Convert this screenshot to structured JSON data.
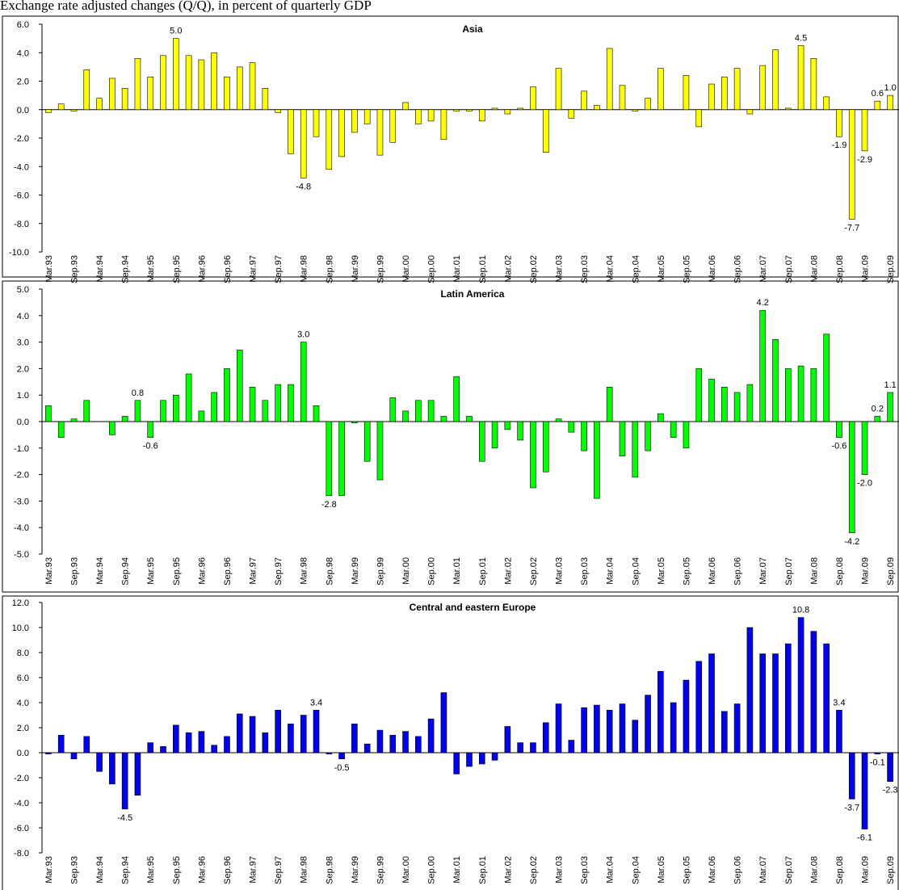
{
  "title": "Exchange rate adjusted changes (Q/Q), in percent of quarterly GDP",
  "chart_data": [
    {
      "type": "bar",
      "title": "Asia",
      "color": "#ffff00",
      "categories": [
        "Mar.93",
        null,
        "Sep.93",
        null,
        "Mar.94",
        null,
        "Sep.94",
        null,
        "Mar.95",
        null,
        "Sep.95",
        null,
        "Mar.96",
        null,
        "Sep.96",
        null,
        "Mar.97",
        null,
        "Sep.97",
        null,
        "Mar.98",
        null,
        "Sep.98",
        null,
        "Mar.99",
        null,
        "Sep.99",
        null,
        "Mar.00",
        null,
        "Sep.00",
        null,
        "Mar.01",
        null,
        "Sep.01",
        null,
        "Mar.02",
        null,
        "Sep.02",
        null,
        "Mar.03",
        null,
        "Sep.03",
        null,
        "Mar.04",
        null,
        "Sep.04",
        null,
        "Mar.05",
        null,
        "Sep.05",
        null,
        "Mar.06",
        null,
        "Sep.06",
        null,
        "Mar.07",
        null,
        "Sep.07",
        null,
        "Mar.08",
        null,
        "Sep.08",
        null,
        "Mar.09",
        null,
        "Sep.09"
      ],
      "values": [
        -0.2,
        0.4,
        -0.1,
        2.8,
        0.8,
        2.2,
        1.5,
        3.6,
        2.3,
        3.8,
        5.0,
        3.8,
        3.5,
        4.0,
        2.3,
        3.0,
        3.3,
        1.5,
        -0.2,
        -3.1,
        -4.8,
        -1.9,
        -4.2,
        -3.3,
        -1.6,
        -1.0,
        -3.2,
        -2.3,
        0.5,
        -1.0,
        -0.8,
        -2.1,
        -0.1,
        -0.1,
        -0.8,
        0.1,
        -0.3,
        0.1,
        1.6,
        -3.0,
        2.9,
        -0.6,
        1.3,
        0.3,
        4.3,
        1.7,
        -0.1,
        0.8,
        2.9,
        0.0,
        2.4,
        -1.2,
        1.8,
        2.3,
        2.9,
        -0.3,
        3.1,
        4.2,
        0.1,
        4.5,
        3.6,
        0.9,
        -1.9,
        -7.7,
        -2.9,
        0.6,
        1.0
      ],
      "value_labels": [
        null,
        null,
        null,
        null,
        null,
        null,
        null,
        null,
        null,
        null,
        "5.0",
        null,
        null,
        null,
        null,
        null,
        null,
        null,
        null,
        null,
        "-4.8",
        null,
        null,
        null,
        null,
        null,
        null,
        null,
        null,
        null,
        null,
        null,
        null,
        null,
        null,
        null,
        null,
        null,
        null,
        null,
        null,
        null,
        null,
        null,
        null,
        null,
        null,
        null,
        null,
        null,
        null,
        null,
        null,
        null,
        null,
        null,
        null,
        null,
        null,
        "4.5",
        null,
        null,
        "-1.9",
        "-7.7",
        "-2.9",
        "0.6",
        "1.0"
      ],
      "ylim": [
        -10,
        6
      ],
      "yticks": [
        {
          "value": -10,
          "label": "-10.0"
        },
        {
          "value": -8,
          "label": "-8.0"
        },
        {
          "value": -6,
          "label": "-6.0"
        },
        {
          "value": -4,
          "label": "-4.0"
        },
        {
          "value": -2,
          "label": "-2.0"
        },
        {
          "value": 0,
          "label": "0.0"
        },
        {
          "value": 2,
          "label": "2.0"
        },
        {
          "value": 4,
          "label": "4.0"
        },
        {
          "value": 6,
          "label": "6.0"
        }
      ]
    },
    {
      "type": "bar",
      "title": "Latin America",
      "color": "#00ff00",
      "categories": [
        "Mar.93",
        null,
        "Sep.93",
        null,
        "Mar.94",
        null,
        "Sep.94",
        null,
        "Mar.95",
        null,
        "Sep.95",
        null,
        "Mar.96",
        null,
        "Sep.96",
        null,
        "Mar.97",
        null,
        "Sep.97",
        null,
        "Mar.98",
        null,
        "Sep.98",
        null,
        "Mar.99",
        null,
        "Sep.99",
        null,
        "Mar.00",
        null,
        "Sep.00",
        null,
        "Mar.01",
        null,
        "Sep.01",
        null,
        "Mar.02",
        null,
        "Sep.02",
        null,
        "Mar.03",
        null,
        "Sep.03",
        null,
        "Mar.04",
        null,
        "Sep.04",
        null,
        "Mar.05",
        null,
        "Sep.05",
        null,
        "Mar.06",
        null,
        "Sep.06",
        null,
        "Mar.07",
        null,
        "Sep.07",
        null,
        "Mar.08",
        null,
        "Sep.08",
        null,
        "Mar.09",
        null,
        "Sep.09"
      ],
      "values": [
        0.6,
        -0.6,
        0.1,
        0.8,
        0.0,
        -0.5,
        0.2,
        0.8,
        -0.6,
        0.8,
        1.0,
        1.8,
        0.4,
        1.1,
        2.0,
        2.7,
        1.3,
        0.8,
        1.4,
        1.4,
        3.0,
        0.6,
        -2.8,
        -2.8,
        -0.05,
        -1.5,
        -2.2,
        0.9,
        0.4,
        0.8,
        0.8,
        0.2,
        1.7,
        0.2,
        -1.5,
        -1.0,
        -0.3,
        -0.7,
        -2.5,
        -1.9,
        0.1,
        -0.4,
        -1.1,
        -2.9,
        1.3,
        -1.3,
        -2.1,
        -1.1,
        0.3,
        -0.6,
        -1.0,
        2.0,
        1.6,
        1.3,
        1.1,
        1.4,
        4.2,
        3.1,
        2.0,
        2.1,
        2.0,
        3.3,
        -0.6,
        -4.2,
        -2.0,
        0.2,
        1.1
      ],
      "value_labels": [
        null,
        null,
        null,
        null,
        null,
        null,
        null,
        "0.8",
        "-0.6",
        null,
        null,
        null,
        null,
        null,
        null,
        null,
        null,
        null,
        null,
        null,
        "3.0",
        null,
        "-2.8",
        null,
        null,
        null,
        null,
        null,
        null,
        null,
        null,
        null,
        null,
        null,
        null,
        null,
        null,
        null,
        null,
        null,
        null,
        null,
        null,
        null,
        null,
        null,
        null,
        null,
        null,
        null,
        null,
        null,
        null,
        null,
        null,
        null,
        "4.2",
        null,
        null,
        null,
        null,
        null,
        "-0.6",
        "-4.2",
        "-2.0",
        "0.2",
        "1.1"
      ],
      "ylim": [
        -5,
        5
      ],
      "yticks": [
        {
          "value": -5,
          "label": "-5.0"
        },
        {
          "value": -4,
          "label": "-4.0"
        },
        {
          "value": -3,
          "label": "-3.0"
        },
        {
          "value": -2,
          "label": "-2.0"
        },
        {
          "value": -1,
          "label": "-1.0"
        },
        {
          "value": 0,
          "label": "0.0"
        },
        {
          "value": 1,
          "label": "1.0"
        },
        {
          "value": 2,
          "label": "2.0"
        },
        {
          "value": 3,
          "label": "3.0"
        },
        {
          "value": 4,
          "label": "4.0"
        },
        {
          "value": 5,
          "label": "5.0"
        }
      ]
    },
    {
      "type": "bar",
      "title": "Central and eastern Europe",
      "color": "#0000ee",
      "categories": [
        "Mar.93",
        null,
        "Sep.93",
        null,
        "Mar.94",
        null,
        "Sep.94",
        null,
        "Mar.95",
        null,
        "Sep.95",
        null,
        "Mar.96",
        null,
        "Sep.96",
        null,
        "Mar.97",
        null,
        "Sep.97",
        null,
        "Mar.98",
        null,
        "Sep.98",
        null,
        "Mar.99",
        null,
        "Sep.99",
        null,
        "Mar.00",
        null,
        "Sep.00",
        null,
        "Mar.01",
        null,
        "Sep.01",
        null,
        "Mar.02",
        null,
        "Sep.02",
        null,
        "Mar.03",
        null,
        "Sep.03",
        null,
        "Mar.04",
        null,
        "Sep.04",
        null,
        "Mar.05",
        null,
        "Sep.05",
        null,
        "Mar.06",
        null,
        "Sep.06",
        null,
        "Mar.07",
        null,
        "Sep.07",
        null,
        "Mar.08",
        null,
        "Sep.08",
        null,
        "Mar.09",
        null,
        "Sep.09"
      ],
      "values": [
        -0.1,
        1.4,
        -0.5,
        1.3,
        -1.5,
        -2.5,
        -4.5,
        -3.4,
        0.8,
        0.5,
        2.2,
        1.6,
        1.7,
        0.6,
        1.3,
        3.1,
        2.9,
        1.6,
        3.4,
        2.3,
        3.0,
        3.4,
        -0.1,
        -0.5,
        2.3,
        0.7,
        1.8,
        1.4,
        1.7,
        1.3,
        2.7,
        4.8,
        -1.7,
        -1.1,
        -0.9,
        -0.6,
        2.1,
        0.8,
        0.8,
        2.4,
        3.9,
        1.0,
        3.6,
        3.8,
        3.4,
        3.9,
        2.6,
        4.6,
        6.5,
        4.0,
        5.8,
        7.3,
        7.9,
        3.3,
        3.9,
        10.0,
        7.9,
        7.9,
        8.7,
        10.8,
        9.7,
        8.7,
        3.4,
        -3.7,
        -6.1,
        -0.1,
        -2.3
      ],
      "value_labels": [
        null,
        null,
        null,
        null,
        null,
        null,
        "-4.5",
        null,
        null,
        null,
        null,
        null,
        null,
        null,
        null,
        null,
        null,
        null,
        null,
        null,
        null,
        "3.4",
        null,
        "-0.5",
        null,
        null,
        null,
        null,
        null,
        null,
        null,
        null,
        null,
        null,
        null,
        null,
        null,
        null,
        null,
        null,
        null,
        null,
        null,
        null,
        null,
        null,
        null,
        null,
        null,
        null,
        null,
        null,
        null,
        null,
        null,
        null,
        null,
        null,
        null,
        "10.8",
        null,
        null,
        "3.4",
        "-3.7",
        "-6.1",
        "-0.1",
        "-2.3"
      ],
      "ylim": [
        -8,
        12
      ],
      "yticks": [
        {
          "value": -8,
          "label": "-8.0"
        },
        {
          "value": -6,
          "label": "-6.0"
        },
        {
          "value": -4,
          "label": "-4.0"
        },
        {
          "value": -2,
          "label": "-2.0"
        },
        {
          "value": 0,
          "label": "0.0"
        },
        {
          "value": 2,
          "label": "2.0"
        },
        {
          "value": 4,
          "label": "4.0"
        },
        {
          "value": 6,
          "label": "6.0"
        },
        {
          "value": 8,
          "label": "8.0"
        },
        {
          "value": 10,
          "label": "10.0"
        },
        {
          "value": 12,
          "label": "12.0"
        }
      ]
    }
  ]
}
